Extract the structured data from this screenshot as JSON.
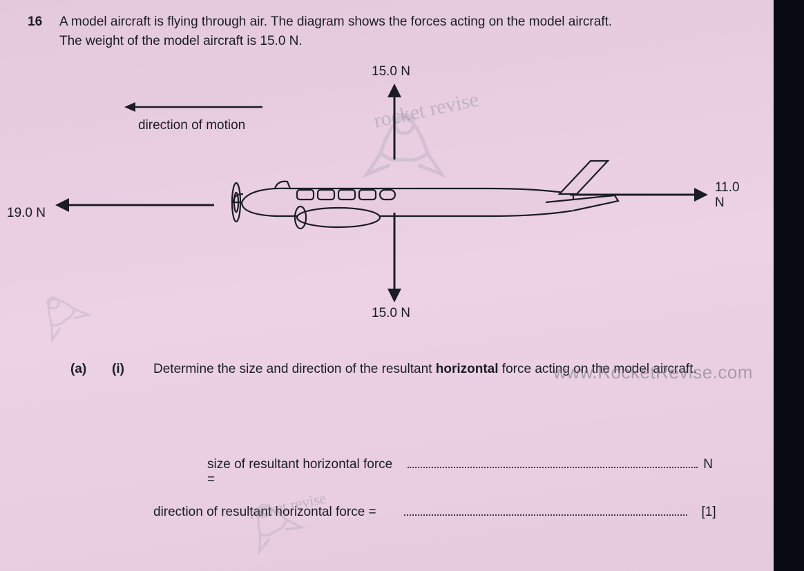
{
  "question": {
    "number": "16",
    "text_line1": "A model aircraft is flying through air. The diagram shows the forces acting on the model aircraft.",
    "text_line2": "The weight of the model aircraft is 15.0 N."
  },
  "diagram": {
    "motion_label": "direction of motion",
    "forces": {
      "up": {
        "label": "15.0 N",
        "value_N": 15.0
      },
      "down": {
        "label": "15.0 N",
        "value_N": 15.0
      },
      "left": {
        "label": "19.0 N",
        "value_N": 19.0
      },
      "right": {
        "label": "11.0 N",
        "value_N": 11.0
      }
    },
    "arrow_color": "#1a1d24",
    "aircraft_stroke": "#1a1d24",
    "aircraft_fill": "#e8cde0"
  },
  "watermarks": {
    "script": "rocket revise",
    "url": "www.RocketRevise.com"
  },
  "subquestion": {
    "part": "(a)",
    "sub": "(i)",
    "text": "Determine the size and direction of the resultant horizontal force acting on the model aircraft.",
    "bold_word": "horizontal"
  },
  "answers": {
    "size_label_prefix": "size of resultant horizontal force =",
    "size_unit": "N",
    "direction_label_prefix": "direction of resultant horizontal force =",
    "marks": "[1]"
  },
  "colors": {
    "page_bg": "#e8cde0",
    "text": "#1a1d24",
    "dark_bg": "#0a0a14",
    "watermark": "rgba(120,125,140,0.35)"
  }
}
